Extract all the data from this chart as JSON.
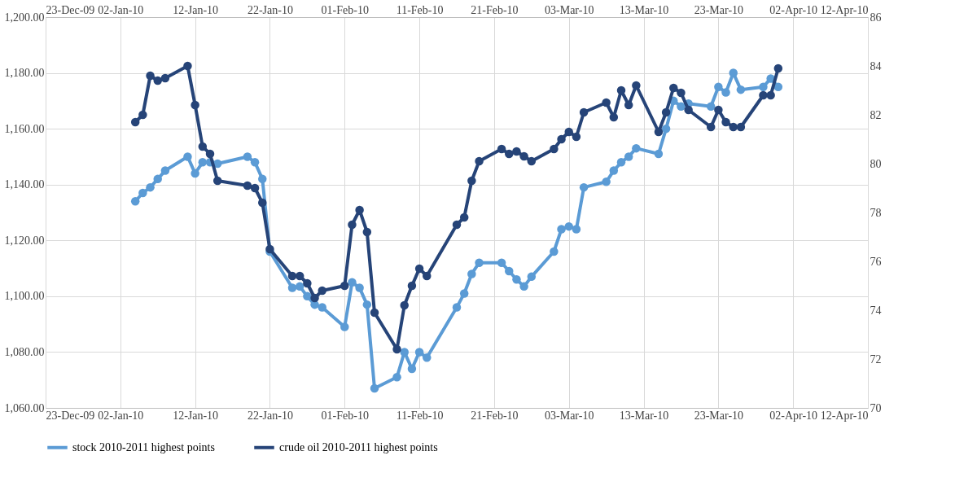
{
  "chart_data": {
    "type": "line",
    "x": [
      "2010-01-04",
      "2010-01-05",
      "2010-01-06",
      "2010-01-07",
      "2010-01-08",
      "2010-01-11",
      "2010-01-12",
      "2010-01-13",
      "2010-01-14",
      "2010-01-15",
      "2010-01-19",
      "2010-01-20",
      "2010-01-21",
      "2010-01-22",
      "2010-01-25",
      "2010-01-26",
      "2010-01-27",
      "2010-01-28",
      "2010-01-29",
      "2010-02-01",
      "2010-02-02",
      "2010-02-03",
      "2010-02-04",
      "2010-02-05",
      "2010-02-08",
      "2010-02-09",
      "2010-02-10",
      "2010-02-11",
      "2010-02-12",
      "2010-02-16",
      "2010-02-17",
      "2010-02-18",
      "2010-02-19",
      "2010-02-22",
      "2010-02-23",
      "2010-02-24",
      "2010-02-25",
      "2010-02-26",
      "2010-03-01",
      "2010-03-02",
      "2010-03-03",
      "2010-03-04",
      "2010-03-05",
      "2010-03-08",
      "2010-03-09",
      "2010-03-10",
      "2010-03-11",
      "2010-03-12",
      "2010-03-15",
      "2010-03-16",
      "2010-03-17",
      "2010-03-18",
      "2010-03-19",
      "2010-03-22",
      "2010-03-23",
      "2010-03-24",
      "2010-03-25",
      "2010-03-26",
      "2010-03-29",
      "2010-03-30",
      "2010-03-31"
    ],
    "series": [
      {
        "name": "stock 2010-2011 highest points",
        "color": "#5b9bd5",
        "values": [
          1134,
          1137,
          1139,
          1142,
          1145,
          1150,
          1144,
          1148,
          1148,
          1147.5,
          1150,
          1148,
          1142,
          1116,
          1103,
          1103.5,
          1100,
          1097,
          1096,
          1089,
          1105,
          1103,
          1097,
          1067,
          1071,
          1080,
          1074,
          1080,
          1078,
          1096,
          1101,
          1108,
          1112,
          1112,
          1109,
          1106,
          1103.5,
          1107,
          1116,
          1124,
          1125,
          1124,
          1139,
          1141,
          1145,
          1148,
          1150,
          1153,
          1151,
          1160,
          1170,
          1168,
          1169,
          1168,
          1175,
          1173,
          1180,
          1174,
          1175,
          1178,
          1175
        ]
      },
      {
        "name": "crude oil 2010-2011 highest points",
        "color": "#264478",
        "axis": "y2",
        "values": [
          81.7,
          82.0,
          83.6,
          83.4,
          83.5,
          84.0,
          82.4,
          80.7,
          80.4,
          79.3,
          79.1,
          79.0,
          78.4,
          76.5,
          75.4,
          75.4,
          75.1,
          74.5,
          74.8,
          75.0,
          77.5,
          78.1,
          77.2,
          73.9,
          72.4,
          74.2,
          75.0,
          75.7,
          75.4,
          77.5,
          77.8,
          79.3,
          80.1,
          80.6,
          80.4,
          80.5,
          80.3,
          80.1,
          80.6,
          81.0,
          81.3,
          81.1,
          82.1,
          82.5,
          81.9,
          83.0,
          82.4,
          83.2,
          81.3,
          82.1,
          83.1,
          82.9,
          82.2,
          81.5,
          82.2,
          81.7,
          81.5,
          81.5,
          82.8,
          82.8,
          83.9
        ]
      }
    ],
    "xlim": [
      "2009-12-23",
      "2010-04-12"
    ],
    "xticks": [
      {
        "value": "2009-12-23",
        "label": "23-Dec-09"
      },
      {
        "value": "2010-01-02",
        "label": "02-Jan-10"
      },
      {
        "value": "2010-01-12",
        "label": "12-Jan-10"
      },
      {
        "value": "2010-01-22",
        "label": "22-Jan-10"
      },
      {
        "value": "2010-02-01",
        "label": "01-Feb-10"
      },
      {
        "value": "2010-02-11",
        "label": "11-Feb-10"
      },
      {
        "value": "2010-02-21",
        "label": "21-Feb-10"
      },
      {
        "value": "2010-03-03",
        "label": "03-Mar-10"
      },
      {
        "value": "2010-03-13",
        "label": "13-Mar-10"
      },
      {
        "value": "2010-03-23",
        "label": "23-Mar-10"
      },
      {
        "value": "2010-04-02",
        "label": "02-Apr-10"
      },
      {
        "value": "2010-04-12",
        "label": "12-Apr-10"
      }
    ],
    "x2lim": [
      "2009-12-23",
      "2010-04-12"
    ],
    "x2ticks": [
      {
        "value": "2009-12-23",
        "label": "23-Dec-09"
      },
      {
        "value": "2010-01-02",
        "label": "02-Jan-10"
      },
      {
        "value": "2010-01-12",
        "label": "12-Jan-10"
      },
      {
        "value": "2010-01-22",
        "label": "22-Jan-10"
      },
      {
        "value": "2010-02-01",
        "label": "01-Feb-10"
      },
      {
        "value": "2010-02-11",
        "label": "11-Feb-10"
      },
      {
        "value": "2010-02-21",
        "label": "21-Feb-10"
      },
      {
        "value": "2010-03-03",
        "label": "03-Mar-10"
      },
      {
        "value": "2010-03-13",
        "label": "13-Mar-10"
      },
      {
        "value": "2010-03-23",
        "label": "23-Mar-10"
      },
      {
        "value": "2010-04-02",
        "label": "02-Apr-10"
      },
      {
        "value": "2010-04-12",
        "label": "12-Apr-10"
      }
    ],
    "ylim": [
      1060,
      1200
    ],
    "yticks": [
      {
        "value": 1060,
        "label": "1,060.00"
      },
      {
        "value": 1080,
        "label": "1,080.00"
      },
      {
        "value": 1100,
        "label": "1,100.00"
      },
      {
        "value": 1120,
        "label": "1,120.00"
      },
      {
        "value": 1140,
        "label": "1,140.00"
      },
      {
        "value": 1160,
        "label": "1,160.00"
      },
      {
        "value": 1180,
        "label": "1,180.00"
      },
      {
        "value": 1200,
        "label": "1,200.00"
      }
    ],
    "y2lim": [
      70,
      86
    ],
    "y2ticks": [
      70,
      72,
      74,
      76,
      78,
      80,
      82,
      84,
      86
    ],
    "grid": true,
    "legend": "bottom",
    "marker": "circle",
    "line_style": "solid"
  }
}
